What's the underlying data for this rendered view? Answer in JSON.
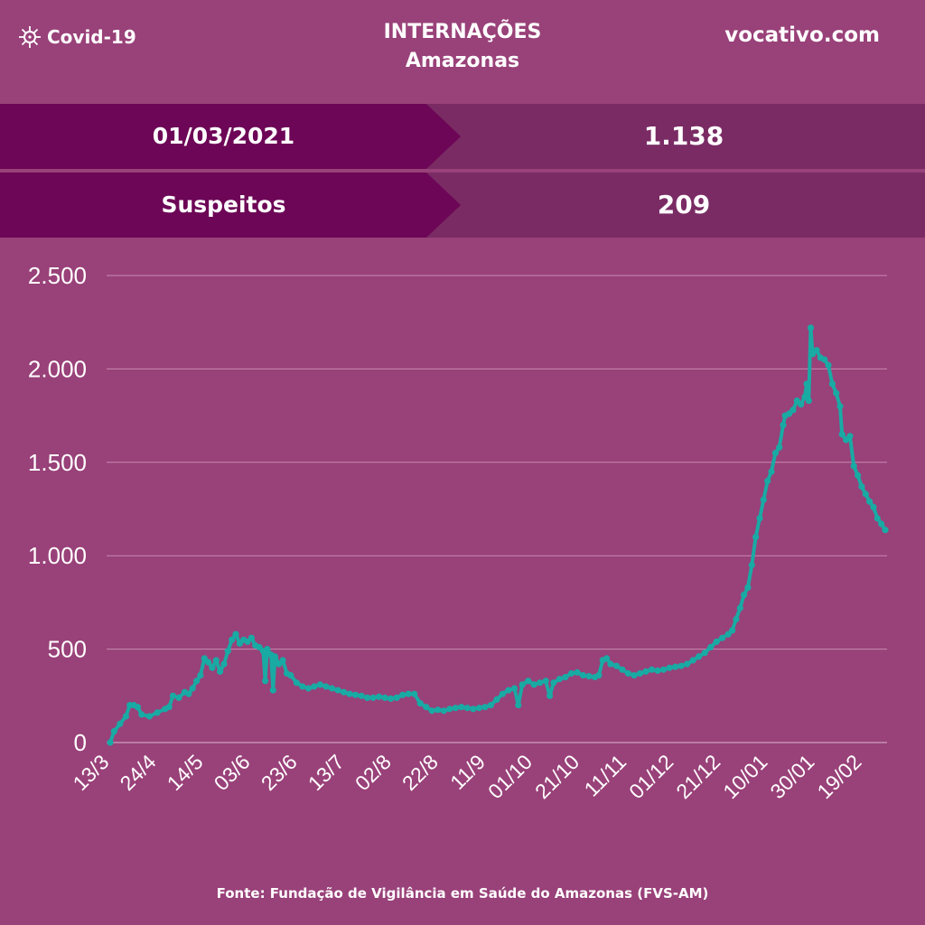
{
  "header": {
    "brand_label": "Covid-19",
    "brand_icon": "virus-icon",
    "title_line1": "INTERNAÇÕES",
    "title_line2": "Amazonas",
    "site": "vocativo.com"
  },
  "rows": [
    {
      "label": "01/03/2021",
      "value": "1.138"
    },
    {
      "label": "Suspeitos",
      "value": "209"
    }
  ],
  "colors": {
    "background": "#994179",
    "band_dark": "#6d0656",
    "band_light": "#7a2b64",
    "line": "#19aaa4"
  },
  "footer": "Fonte: Fundação de Vigilância em Saúde do Amazonas (FVS-AM)",
  "chart_data": {
    "type": "line",
    "title": "INTERNAÇÕES",
    "subtitle": "Amazonas",
    "xlabel": "",
    "ylabel": "",
    "ylim": [
      0,
      2500
    ],
    "yticks": [
      0,
      500,
      1000,
      1500,
      2000,
      2500
    ],
    "ytick_labels": [
      "0",
      "500",
      "1.000",
      "1.500",
      "2.000",
      "2.500"
    ],
    "xticks": [
      "13/3",
      "24/4",
      "14/5",
      "03/6",
      "23/6",
      "13/7",
      "02/8",
      "22/8",
      "11/9",
      "01/10",
      "21/10",
      "11/11",
      "01/12",
      "21/12",
      "10/01",
      "30/01",
      "19/02"
    ],
    "grid": true,
    "legend": "none",
    "series": [
      {
        "values": [
          [
            0,
            0
          ],
          [
            2,
            60
          ],
          [
            5,
            100
          ],
          [
            8,
            140
          ],
          [
            10,
            200
          ],
          [
            12,
            200
          ],
          [
            14,
            190
          ],
          [
            16,
            150
          ],
          [
            20,
            140
          ],
          [
            24,
            160
          ],
          [
            28,
            180
          ],
          [
            30,
            190
          ],
          [
            32,
            250
          ],
          [
            35,
            240
          ],
          [
            38,
            270
          ],
          [
            40,
            260
          ],
          [
            42,
            290
          ],
          [
            44,
            330
          ],
          [
            46,
            360
          ],
          [
            48,
            450
          ],
          [
            50,
            430
          ],
          [
            52,
            400
          ],
          [
            54,
            440
          ],
          [
            56,
            380
          ],
          [
            58,
            420
          ],
          [
            60,
            490
          ],
          [
            62,
            550
          ],
          [
            64,
            580
          ],
          [
            66,
            530
          ],
          [
            68,
            550
          ],
          [
            70,
            540
          ],
          [
            72,
            560
          ],
          [
            74,
            520
          ],
          [
            76,
            510
          ],
          [
            78,
            490
          ],
          [
            79,
            330
          ],
          [
            80,
            500
          ],
          [
            82,
            470
          ],
          [
            83,
            280
          ],
          [
            84,
            460
          ],
          [
            86,
            420
          ],
          [
            88,
            440
          ],
          [
            90,
            370
          ],
          [
            92,
            360
          ],
          [
            95,
            320
          ],
          [
            98,
            300
          ],
          [
            101,
            290
          ],
          [
            104,
            300
          ],
          [
            107,
            310
          ],
          [
            110,
            300
          ],
          [
            113,
            290
          ],
          [
            116,
            280
          ],
          [
            119,
            270
          ],
          [
            122,
            260
          ],
          [
            125,
            255
          ],
          [
            128,
            250
          ],
          [
            131,
            240
          ],
          [
            134,
            240
          ],
          [
            137,
            245
          ],
          [
            140,
            240
          ],
          [
            143,
            235
          ],
          [
            146,
            240
          ],
          [
            149,
            255
          ],
          [
            152,
            260
          ],
          [
            155,
            260
          ],
          [
            158,
            210
          ],
          [
            161,
            190
          ],
          [
            164,
            170
          ],
          [
            167,
            175
          ],
          [
            170,
            170
          ],
          [
            173,
            180
          ],
          [
            176,
            185
          ],
          [
            179,
            190
          ],
          [
            182,
            185
          ],
          [
            185,
            180
          ],
          [
            188,
            185
          ],
          [
            191,
            190
          ],
          [
            194,
            200
          ],
          [
            197,
            230
          ],
          [
            200,
            260
          ],
          [
            203,
            280
          ],
          [
            206,
            290
          ],
          [
            208,
            200
          ],
          [
            210,
            310
          ],
          [
            213,
            330
          ],
          [
            216,
            310
          ],
          [
            219,
            320
          ],
          [
            222,
            330
          ],
          [
            224,
            250
          ],
          [
            226,
            320
          ],
          [
            229,
            340
          ],
          [
            232,
            350
          ],
          [
            235,
            370
          ],
          [
            238,
            375
          ],
          [
            241,
            360
          ],
          [
            244,
            355
          ],
          [
            247,
            350
          ],
          [
            249,
            360
          ],
          [
            251,
            440
          ],
          [
            253,
            450
          ],
          [
            255,
            420
          ],
          [
            258,
            410
          ],
          [
            261,
            390
          ],
          [
            264,
            370
          ],
          [
            267,
            360
          ],
          [
            270,
            370
          ],
          [
            273,
            380
          ],
          [
            276,
            390
          ],
          [
            279,
            385
          ],
          [
            282,
            390
          ],
          [
            285,
            400
          ],
          [
            288,
            405
          ],
          [
            291,
            410
          ],
          [
            294,
            420
          ],
          [
            297,
            440
          ],
          [
            300,
            460
          ],
          [
            303,
            480
          ],
          [
            306,
            510
          ],
          [
            309,
            540
          ],
          [
            312,
            560
          ],
          [
            315,
            580
          ],
          [
            317,
            600
          ],
          [
            319,
            660
          ],
          [
            321,
            720
          ],
          [
            323,
            790
          ],
          [
            325,
            830
          ],
          [
            327,
            950
          ],
          [
            329,
            1100
          ],
          [
            331,
            1200
          ],
          [
            333,
            1300
          ],
          [
            335,
            1400
          ],
          [
            337,
            1450
          ],
          [
            339,
            1550
          ],
          [
            341,
            1580
          ],
          [
            343,
            1700
          ],
          [
            344,
            1750
          ],
          [
            346,
            1760
          ],
          [
            348,
            1780
          ],
          [
            350,
            1830
          ],
          [
            352,
            1810
          ],
          [
            354,
            1850
          ],
          [
            355,
            1920
          ],
          [
            356,
            1830
          ],
          [
            357,
            2220
          ],
          [
            358,
            2080
          ],
          [
            360,
            2100
          ],
          [
            362,
            2060
          ],
          [
            364,
            2050
          ],
          [
            366,
            2020
          ],
          [
            368,
            1920
          ],
          [
            370,
            1870
          ],
          [
            372,
            1800
          ],
          [
            373,
            1650
          ],
          [
            375,
            1620
          ],
          [
            377,
            1640
          ],
          [
            379,
            1480
          ],
          [
            381,
            1430
          ],
          [
            383,
            1370
          ],
          [
            385,
            1330
          ],
          [
            387,
            1290
          ],
          [
            389,
            1260
          ],
          [
            391,
            1200
          ],
          [
            393,
            1170
          ],
          [
            395,
            1138
          ]
        ]
      }
    ]
  }
}
